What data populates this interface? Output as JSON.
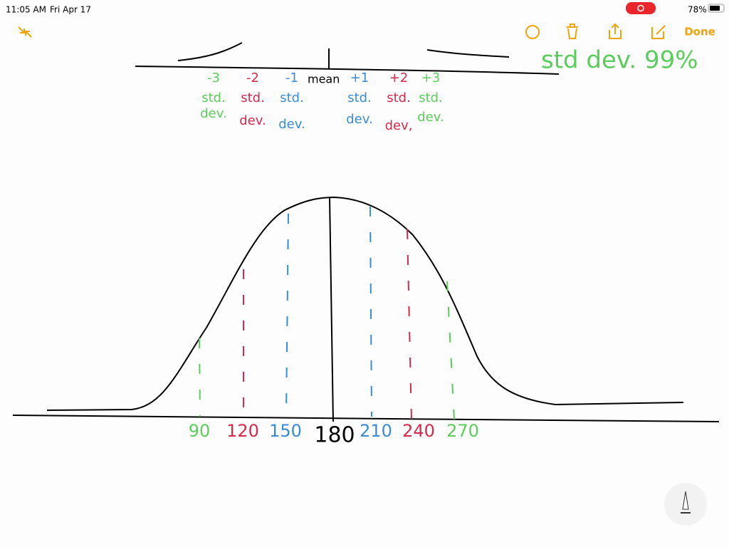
{
  "status_bar": {
    "time": "11:05 AM",
    "date": "Fri Apr 17",
    "battery": "78%"
  },
  "toolbar": {
    "done": "Done"
  },
  "note": {
    "annotation": "std dev. 99%",
    "mean": "mean",
    "top_labels": [
      {
        "sign": "-3",
        "line1": "std.",
        "line2": "dev."
      },
      {
        "sign": "-2",
        "line1": "std.",
        "line2": "dev."
      },
      {
        "sign": "-1",
        "line1": "std.",
        "line2": "dev."
      },
      {
        "sign": "+1",
        "line1": "std.",
        "line2": "dev."
      },
      {
        "sign": "+2",
        "line1": "std.",
        "line2": "dev,"
      },
      {
        "sign": "+3",
        "line1": "std.",
        "line2": "dev."
      }
    ],
    "axis_labels": [
      "90",
      "120",
      "150",
      "180",
      "210",
      "240",
      "270"
    ]
  }
}
